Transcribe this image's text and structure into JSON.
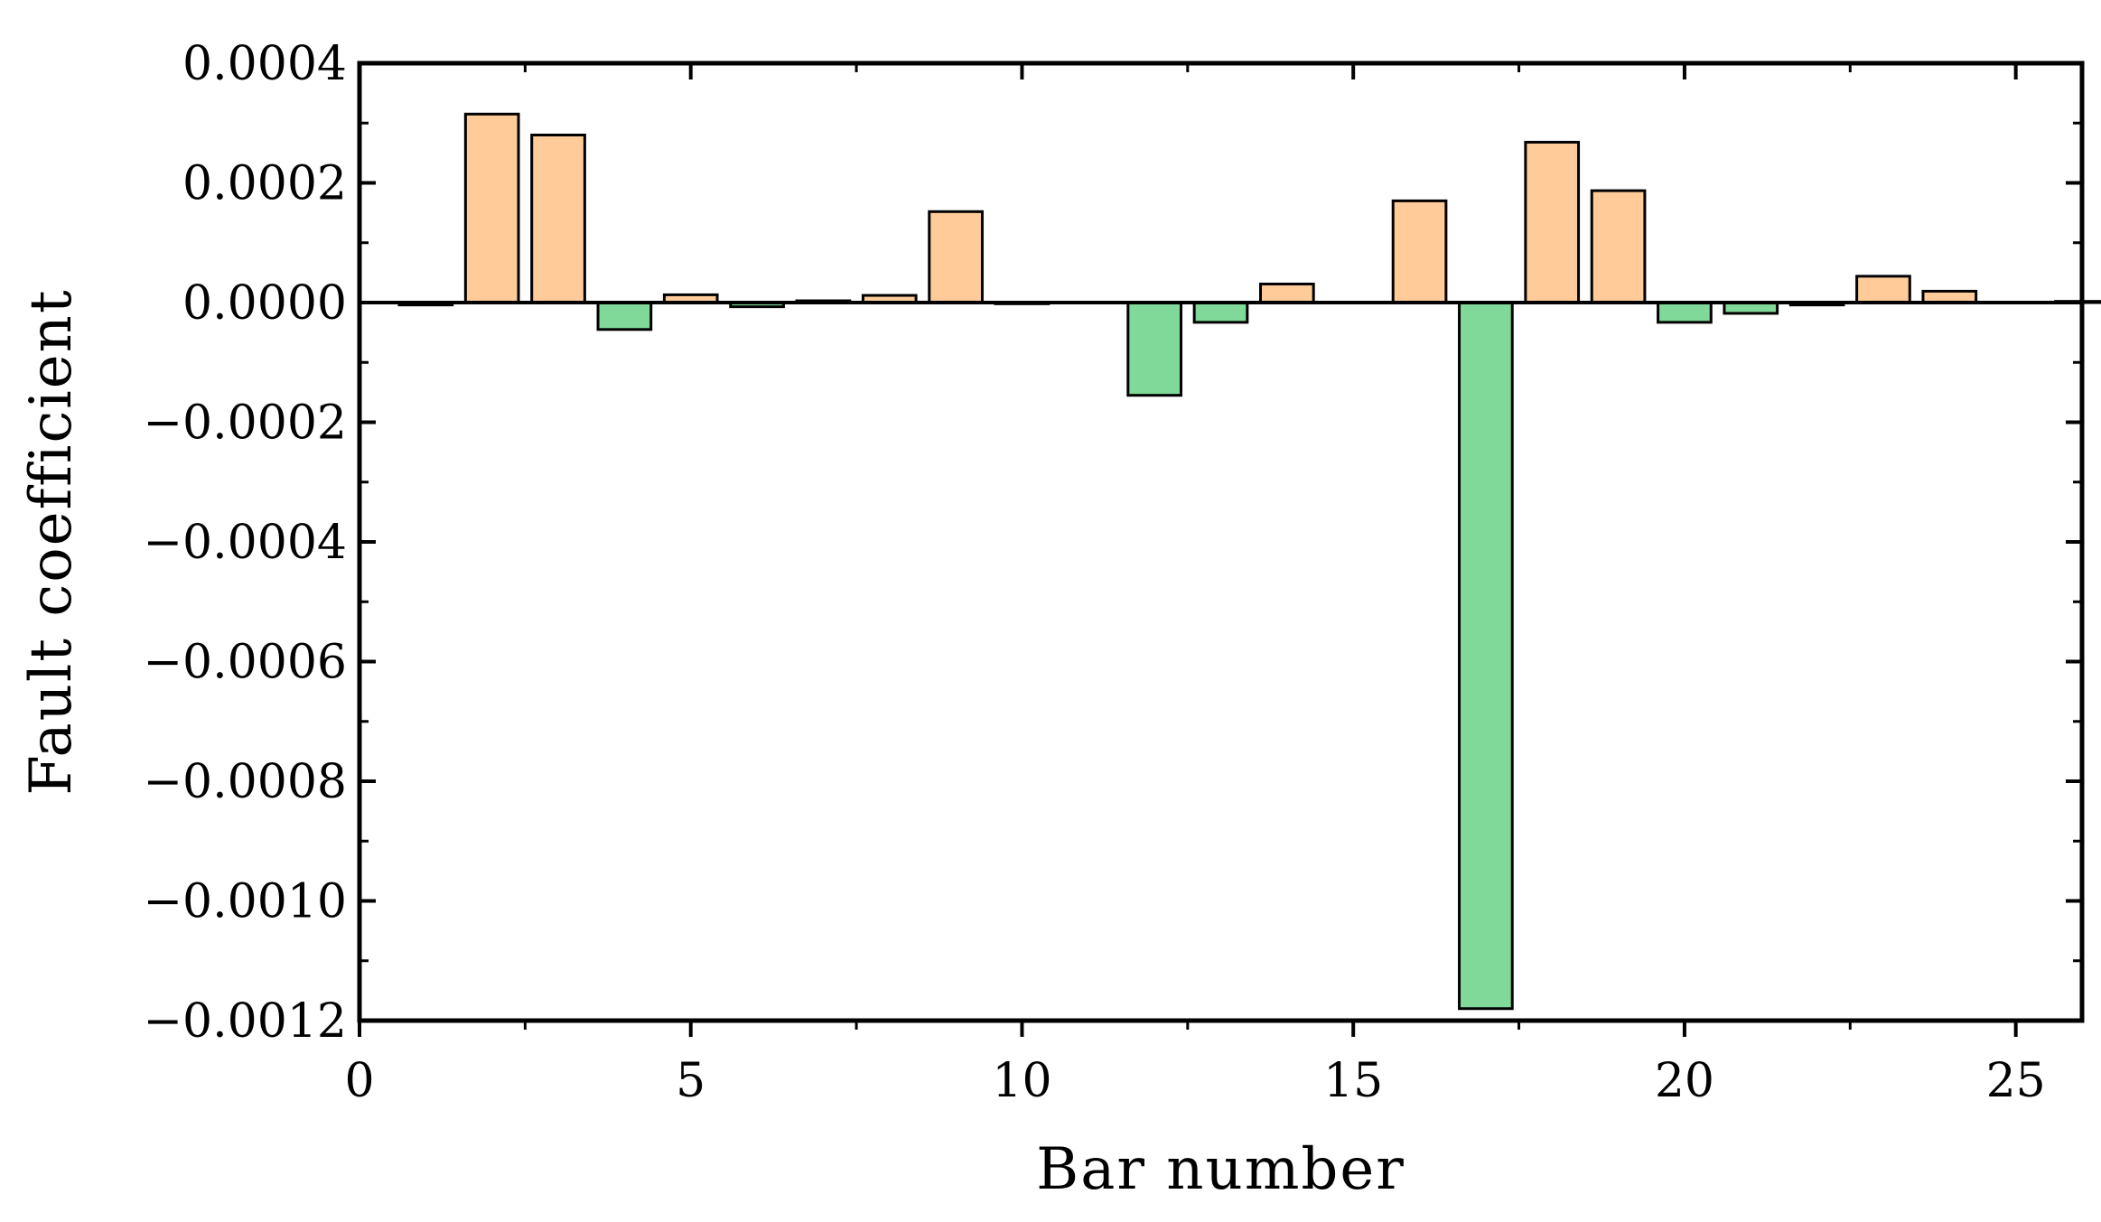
{
  "chart_data": {
    "type": "bar",
    "title": "",
    "xlabel": "Bar number",
    "ylabel": "Fault coefficient",
    "xlim": [
      0,
      26
    ],
    "ylim": [
      -0.0012,
      0.0004
    ],
    "x_ticks": [
      0,
      5,
      10,
      15,
      20,
      25
    ],
    "x_tick_labels": [
      "0",
      "5",
      "10",
      "15",
      "20",
      "25"
    ],
    "y_ticks": [
      -0.0012,
      -0.001,
      -0.0008,
      -0.0006,
      -0.0004,
      -0.0002,
      0.0,
      0.0002,
      0.0004
    ],
    "y_tick_labels": [
      "−0.0012",
      "−0.0010",
      "−0.0008",
      "−0.0006",
      "−0.0004",
      "−0.0002",
      "0.0000",
      "0.0002",
      "0.0004"
    ],
    "grid": false,
    "legend": "none",
    "positive_color": "#FFCC99",
    "negative_color": "#80D999",
    "x": [
      1,
      2,
      3,
      4,
      5,
      6,
      7,
      8,
      9,
      10,
      11,
      12,
      13,
      14,
      15,
      16,
      17,
      18,
      19,
      20,
      21,
      22,
      23,
      24,
      25,
      26
    ],
    "values": [
      -4e-06,
      0.000315,
      0.00028,
      -4.5e-05,
      1.3e-05,
      -7e-06,
      3e-06,
      1.2e-05,
      0.000152,
      -2e-06,
      0.0,
      -0.000155,
      -3.3e-05,
      3.1e-05,
      0.0,
      0.00017,
      -0.00118,
      0.000268,
      0.000187,
      -3.3e-05,
      -1.8e-05,
      -4e-06,
      4.4e-05,
      1.9e-05,
      0.0,
      2e-06
    ]
  }
}
